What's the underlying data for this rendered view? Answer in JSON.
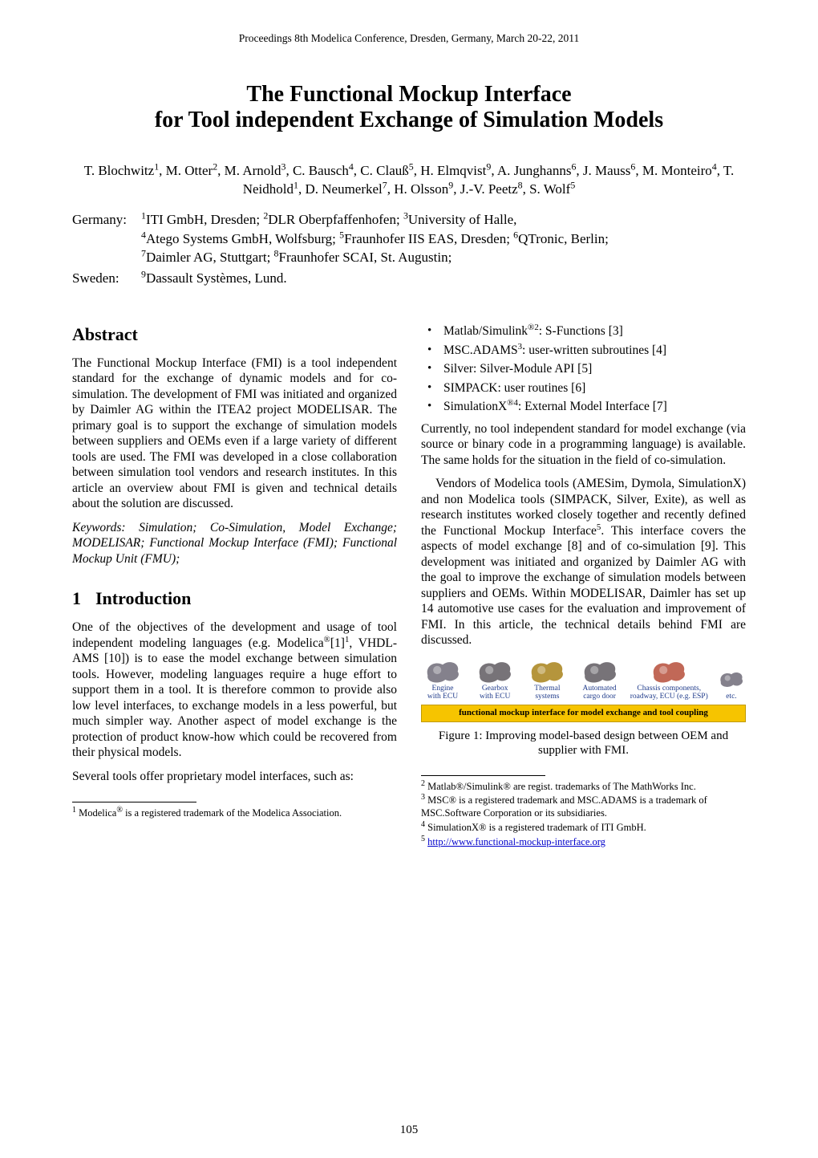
{
  "meta": {
    "conference_header": "Proceedings 8th Modelica Conference, Dresden, Germany, March 20-22, 2011",
    "page_number": "105"
  },
  "title": {
    "line1": "The Functional Mockup Interface",
    "line2": "for Tool independent Exchange of Simulation Models"
  },
  "authors_html": "T. Blochwitz<sup class='s'>1</sup>, M. Otter<sup class='s'>2</sup>, M. Arnold<sup class='s'>3</sup>, C. Bausch<sup class='s'>4</sup>, C. Clauß<sup class='s'>5</sup>, H. Elmqvist<sup class='s'>9</sup>, A. Junghanns<sup class='s'>6</sup>, J. Mauss<sup class='s'>6</sup>, M. Monteiro<sup class='s'>4</sup>, T. Neidhold<sup class='s'>1</sup>, D. Neumerkel<sup class='s'>7</sup>, H. Olsson<sup class='s'>9</sup>, J.-V. Peetz<sup class='s'>8</sup>, S. Wolf<sup class='s'>5</sup>",
  "affiliations": {
    "germany": {
      "label": "Germany:",
      "lines": [
        "<sup class='s'>1</sup>ITI GmbH, Dresden; <sup class='s'>2</sup>DLR Oberpfaffenhofen; <sup class='s'>3</sup>University of Halle,",
        "<sup class='s'>4</sup>Atego Systems GmbH, Wolfsburg; <sup class='s'>5</sup>Fraunhofer IIS EAS, Dresden; <sup class='s'>6</sup>QTronic, Berlin;",
        "<sup class='s'>7</sup>Daimler AG, Stuttgart; <sup class='s'>8</sup>Fraunhofer SCAI, St. Augustin;"
      ]
    },
    "sweden": {
      "label": "Sweden:",
      "lines": [
        "<sup class='s'>9</sup>Dassault Systèmes, Lund."
      ]
    }
  },
  "left": {
    "abstract_heading": "Abstract",
    "abstract_body": "The Functional Mockup Interface (FMI) is a tool independent standard for the exchange of dynamic models and for co-simulation. The development of FMI was initiated and organized by Daimler AG within the ITEA2 project MODELISAR. The primary goal is to support the exchange of simulation models between suppliers and OEMs even if a large variety of different tools are used. The FMI was developed in a close collaboration between simulation tool vendors and research institutes. In this article an overview about FMI is given and technical details about the solution are discussed.",
    "keywords": "Keywords: Simulation; Co-Simulation, Model Exchange; MODELISAR; Functional Mockup Interface (FMI); Functional Mockup Unit (FMU);",
    "intro_num": "1",
    "intro_heading": "Introduction",
    "intro_p1_html": "One of the objectives of the development and usage of tool independent modeling languages (e.g. Modelica<sup class='s'>®</sup>[1]<sup class='s'>1</sup>, VHDL-AMS [10]) is to ease the model exchange between simulation tools. However, modeling languages require a huge effort to support them in a tool. It is therefore common to provide also low level interfaces, to exchange models in a less powerful, but much simpler way. Another aspect of model exchange is the protection of product know-how which could be recovered from their physical models.",
    "intro_p2": "Several tools offer proprietary model interfaces, such as:",
    "footnote_html": "<sup>1</sup> Modelica<sup>®</sup> is a registered trademark of the Modelica Association."
  },
  "right": {
    "bullets": [
      "Matlab/Simulink<sup class='s'>®</sup><sup class='s'>2</sup>: S-Functions [3]",
      "MSC.ADAMS<sup class='s'>3</sup>: user-written subroutines [4]",
      "Silver: Silver-Module API [5]",
      "SIMPACK: user routines [6]",
      "SimulationX<sup class='s'>®</sup><sup class='s'>4</sup>: External Model Interface [7]"
    ],
    "p1": "Currently, no tool independent standard for model exchange (via source or binary code in a programming language) is available. The same holds for the situation in the field of co-simulation.",
    "p2_html": "Vendors of Modelica tools (AMESim, Dymola, SimulationX) and non Modelica tools (SIMPACK, Silver, Exite), as well as research institutes worked closely together and recently defined the Functional Mockup Interface<sup class='s'>5</sup>. This interface covers the aspects of model exchange [8] and of co-simulation [9]. This development was initiated and organized by Daimler AG with the goal to improve the exchange of simulation models between suppliers and OEMs. Within MODELISAR, Daimler has set up 14 automotive use cases for the evaluation and improvement of FMI. In this article, the technical details behind FMI are discussed.",
    "figure1": {
      "items": [
        {
          "caption": "Engine\nwith ECU",
          "color": "#6f6b78"
        },
        {
          "caption": "Gearbox\nwith ECU",
          "color": "#5f5b60"
        },
        {
          "caption": "Thermal\nsystems",
          "color": "#a8821a"
        },
        {
          "caption": "Automated\ncargo door",
          "color": "#5f5b60"
        },
        {
          "caption": "Chassis components,\nroadway, ECU (e.g. ESP)",
          "color": "#b64d3a"
        },
        {
          "caption": "etc.",
          "color": "#6f6b78"
        }
      ],
      "bar_text": "functional mockup interface for model exchange and tool coupling",
      "bar_bg": "#f6c400",
      "caption": "Figure 1: Improving model-based design between OEM and supplier with FMI."
    },
    "footnotes": [
      "<sup>2</sup> Matlab®/Simulink® are regist. trademarks of The MathWorks Inc.",
      "<sup>3</sup> MSC® is a registered trademark and MSC.ADAMS is a trademark of MSC.Software Corporation or its subsidiaries.",
      "<sup>4</sup> SimulationX® is a registered trademark of ITI GmbH.",
      "<sup>5</sup> <a href='#'>http://www.functional-mockup-interface.org</a>"
    ]
  }
}
